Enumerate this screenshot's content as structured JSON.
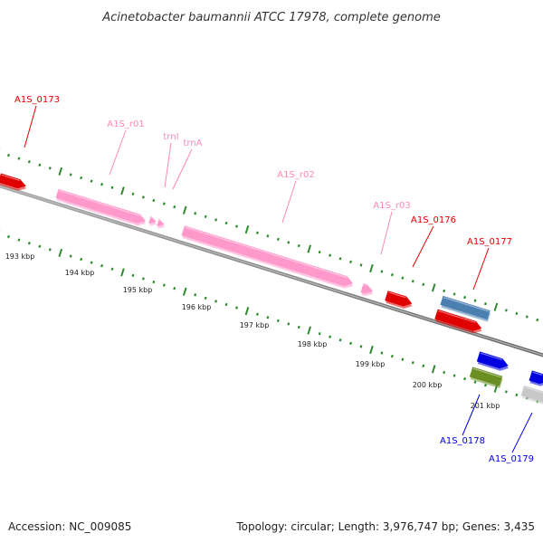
{
  "header": {
    "title": "Acinetobacter baumannii ATCC 17978, complete genome"
  },
  "footer": {
    "accession": "Accession: NC_009085",
    "summary": "Topology: circular; Length: 3,976,747 bp; Genes: 3,435"
  },
  "colors": {
    "backbone": "#808080",
    "tick": "#2e8b2e",
    "cds_forward": "#e00000",
    "cds_reverse": "#0000e0",
    "rna": "#ff99cc",
    "rna_label": "#ff88bb",
    "other_blue": "#4a7fb0",
    "other_green": "#6b8e23",
    "other_gray": "#c8c8c8"
  },
  "scale": {
    "unit": "kbp",
    "ticks": [
      {
        "kbp": 193,
        "label": "193 kbp"
      },
      {
        "kbp": 194,
        "label": "194 kbp"
      },
      {
        "kbp": 195,
        "label": "195 kbp"
      },
      {
        "kbp": 196,
        "label": "196 kbp"
      },
      {
        "kbp": 197,
        "label": "197 kbp"
      },
      {
        "kbp": 198,
        "label": "198 kbp"
      },
      {
        "kbp": 199,
        "label": "199 kbp"
      },
      {
        "kbp": 200,
        "label": "200 kbp"
      },
      {
        "kbp": 201,
        "label": "201 kbp"
      }
    ]
  },
  "features": [
    {
      "label": "A1S_0173",
      "kind": "cds",
      "strand": "forward"
    },
    {
      "label": "A1S_r01",
      "kind": "rna"
    },
    {
      "label": "trnI",
      "kind": "rna"
    },
    {
      "label": "trnA",
      "kind": "rna"
    },
    {
      "label": "A1S_r02",
      "kind": "rna"
    },
    {
      "label": "A1S_r03",
      "kind": "rna"
    },
    {
      "label": "A1S_0176",
      "kind": "cds",
      "strand": "forward"
    },
    {
      "label": "A1S_0177",
      "kind": "cds",
      "strand": "forward"
    },
    {
      "label": "A1S_0178",
      "kind": "cds",
      "strand": "reverse"
    },
    {
      "label": "A1S_0179",
      "kind": "cds",
      "strand": "reverse"
    }
  ]
}
